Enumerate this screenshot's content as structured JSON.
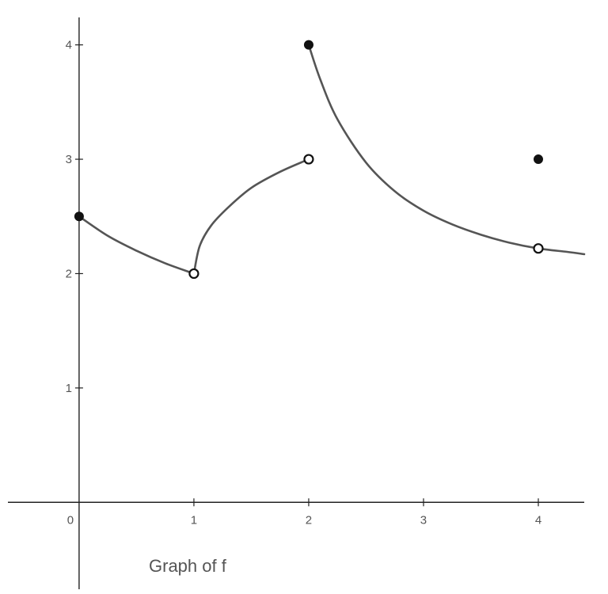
{
  "chart_data": {
    "type": "line",
    "title": "",
    "caption": "Graph of f",
    "xlabel": "",
    "ylabel": "",
    "xlim": [
      -0.62,
      4.4
    ],
    "ylim": [
      -0.76,
      4.24
    ],
    "x_ticks": [
      {
        "value": 0,
        "label": "0"
      },
      {
        "value": 1,
        "label": "1"
      },
      {
        "value": 2,
        "label": "2"
      },
      {
        "value": 3,
        "label": "3"
      },
      {
        "value": 4,
        "label": "4"
      }
    ],
    "y_ticks": [
      {
        "value": 1,
        "label": "1"
      },
      {
        "value": 2,
        "label": "2"
      },
      {
        "value": 3,
        "label": "3"
      },
      {
        "value": 4,
        "label": "4"
      }
    ],
    "grid": false,
    "line_color": "#555555",
    "point_color": "#111111",
    "series": [
      {
        "points": [
          [
            0,
            2.5
          ],
          [
            0.25,
            2.33
          ],
          [
            0.5,
            2.2
          ],
          [
            0.75,
            2.09
          ],
          [
            1,
            2.0
          ]
        ]
      },
      {
        "points": [
          [
            1,
            2.0
          ],
          [
            1.05,
            2.24
          ],
          [
            1.15,
            2.42
          ],
          [
            1.3,
            2.58
          ],
          [
            1.5,
            2.75
          ],
          [
            1.75,
            2.89
          ],
          [
            2,
            3.0
          ]
        ]
      },
      {
        "points": [
          [
            2,
            4.0
          ],
          [
            2.1,
            3.7
          ],
          [
            2.25,
            3.35
          ],
          [
            2.5,
            2.97
          ],
          [
            2.75,
            2.72
          ],
          [
            3,
            2.55
          ],
          [
            3.25,
            2.43
          ],
          [
            3.5,
            2.34
          ],
          [
            3.75,
            2.27
          ],
          [
            4,
            2.22
          ],
          [
            4.25,
            2.19
          ],
          [
            4.4,
            2.17
          ]
        ]
      }
    ],
    "closed_points": [
      [
        0,
        2.5
      ],
      [
        2,
        4.0
      ],
      [
        4,
        3.0
      ]
    ],
    "open_points": [
      [
        1,
        2.0
      ],
      [
        2,
        3.0
      ],
      [
        4,
        2.22
      ]
    ]
  }
}
